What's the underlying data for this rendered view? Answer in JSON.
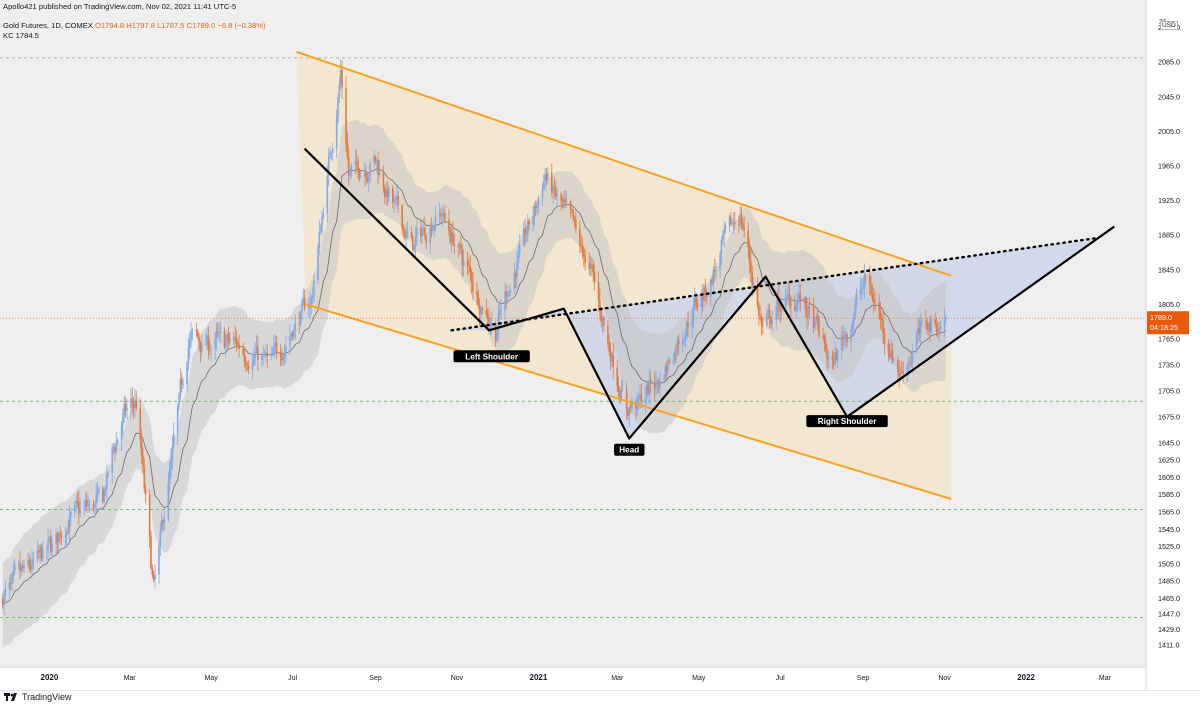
{
  "header": {
    "author_line": "Apollo421 published on TradingView.com, Nov 02, 2021 11:41 UTC-5",
    "symbol": "Gold Futures, 1D, COMEX",
    "ohlc": "O1794.8  H1797.8  L1787.5  C1789.0  −6.8 (−0.38%)",
    "indicator": "KC  1784.5",
    "currency": "USD",
    "top_tick": "21"
  },
  "footer": {
    "brand": "TradingView"
  },
  "colors": {
    "up": "#7fa9ea",
    "down": "#e57a3a",
    "channel_line": "#f7a322",
    "channel_fill": "#f5e4c8",
    "kc_fill": "#c4c4c4",
    "triangle_fill": "#c7d3ec",
    "price_tag": "#e8590c",
    "hline_gray": "#9e9e9e",
    "hline_green": "#4caf50"
  },
  "chart_data": {
    "type": "candlestick",
    "title": "Gold Futures, 1D, COMEX",
    "x_range": [
      "2019-11-25",
      "2022-03-31"
    ],
    "y_range": [
      1395,
      2150
    ],
    "y_ticks": [
      2125.0,
      2085.0,
      2045.0,
      2005.0,
      1965.0,
      1925.0,
      1885.0,
      1845.0,
      1805.0,
      1765.0,
      1735.0,
      1705.0,
      1675.0,
      1645.0,
      1625.0,
      1605.0,
      1585.0,
      1565.0,
      1545.0,
      1525.0,
      1505.0,
      1485.0,
      1465.0,
      1447.0,
      1429.0,
      1411.0
    ],
    "x_ticks": [
      {
        "date": "2020-01-01",
        "label": "2020"
      },
      {
        "date": "2020-03-01",
        "label": "Mar"
      },
      {
        "date": "2020-05-01",
        "label": "May"
      },
      {
        "date": "2020-07-01",
        "label": "Jul"
      },
      {
        "date": "2020-09-01",
        "label": "Sep"
      },
      {
        "date": "2020-11-01",
        "label": "Nov"
      },
      {
        "date": "2021-01-01",
        "label": "2021"
      },
      {
        "date": "2021-03-01",
        "label": "Mar"
      },
      {
        "date": "2021-05-01",
        "label": "May"
      },
      {
        "date": "2021-07-01",
        "label": "Jul"
      },
      {
        "date": "2021-09-01",
        "label": "Sep"
      },
      {
        "date": "2021-11-01",
        "label": "Nov"
      },
      {
        "date": "2022-01-01",
        "label": "2022"
      },
      {
        "date": "2022-03-01",
        "label": "Mar"
      }
    ],
    "price_path": [
      {
        "date": "2019-11-27",
        "close": 1465
      },
      {
        "date": "2019-12-31",
        "close": 1520
      },
      {
        "date": "2020-01-15",
        "close": 1555
      },
      {
        "date": "2020-02-10",
        "close": 1580
      },
      {
        "date": "2020-02-24",
        "close": 1675
      },
      {
        "date": "2020-03-06",
        "close": 1690
      },
      {
        "date": "2020-03-19",
        "close": 1475
      },
      {
        "date": "2020-04-14",
        "close": 1770
      },
      {
        "date": "2020-05-18",
        "close": 1760
      },
      {
        "date": "2020-06-15",
        "close": 1735
      },
      {
        "date": "2020-07-15",
        "close": 1810
      },
      {
        "date": "2020-08-06",
        "close": 2075
      },
      {
        "date": "2020-08-12",
        "close": 1950
      },
      {
        "date": "2020-09-01",
        "close": 1975
      },
      {
        "date": "2020-09-28",
        "close": 1870
      },
      {
        "date": "2020-10-20",
        "close": 1915
      },
      {
        "date": "2020-11-30",
        "close": 1775
      },
      {
        "date": "2021-01-06",
        "close": 1955
      },
      {
        "date": "2021-02-10",
        "close": 1840
      },
      {
        "date": "2021-03-08",
        "close": 1680
      },
      {
        "date": "2021-03-31",
        "close": 1715
      },
      {
        "date": "2021-05-10",
        "close": 1840
      },
      {
        "date": "2021-06-01",
        "close": 1910
      },
      {
        "date": "2021-06-18",
        "close": 1770
      },
      {
        "date": "2021-07-15",
        "close": 1820
      },
      {
        "date": "2021-08-09",
        "close": 1730
      },
      {
        "date": "2021-09-03",
        "close": 1835
      },
      {
        "date": "2021-09-29",
        "close": 1725
      },
      {
        "date": "2021-10-20",
        "close": 1790
      },
      {
        "date": "2021-11-02",
        "close": 1789
      }
    ],
    "last_price": {
      "label": "1789.0",
      "value": 1789.0,
      "countdown": "04:18:25"
    },
    "keltner_channel": {
      "name": "KC",
      "value": 1784.5
    },
    "horizontal_lines": [
      {
        "value": 2090,
        "style": "dashed",
        "color": "gray"
      },
      {
        "value": 1693,
        "style": "dashed",
        "color": "green"
      },
      {
        "value": 1568,
        "style": "dashed",
        "color": "green"
      },
      {
        "value": 1443,
        "style": "dashed",
        "color": "green"
      }
    ],
    "descending_channel": {
      "upper": [
        {
          "date": "2020-07-04",
          "price": 2097
        },
        {
          "date": "2021-11-06",
          "price": 1838
        }
      ],
      "lower": [
        {
          "date": "2020-07-11",
          "price": 1805
        },
        {
          "date": "2021-11-06",
          "price": 1580
        }
      ]
    },
    "pattern": {
      "lines": [
        [
          {
            "date": "2020-07-10",
            "price": 1985
          },
          {
            "date": "2020-11-25",
            "price": 1775
          },
          {
            "date": "2021-01-20",
            "price": 1800
          },
          {
            "date": "2021-03-10",
            "price": 1650
          },
          {
            "date": "2021-06-20",
            "price": 1837
          },
          {
            "date": "2021-08-20",
            "price": 1675
          },
          {
            "date": "2022-03-08",
            "price": 1895
          }
        ]
      ],
      "dotted_lines": [
        [
          {
            "date": "2020-10-28",
            "price": 1775
          },
          {
            "date": "2022-02-24",
            "price": 1882
          }
        ]
      ],
      "labels": [
        {
          "text": "Left Shoulder",
          "date": "2020-11-27",
          "price": 1745
        },
        {
          "text": "Head",
          "date": "2021-03-10",
          "price": 1637
        },
        {
          "text": "Right Shoulder",
          "date": "2021-08-20",
          "price": 1670
        }
      ]
    }
  }
}
